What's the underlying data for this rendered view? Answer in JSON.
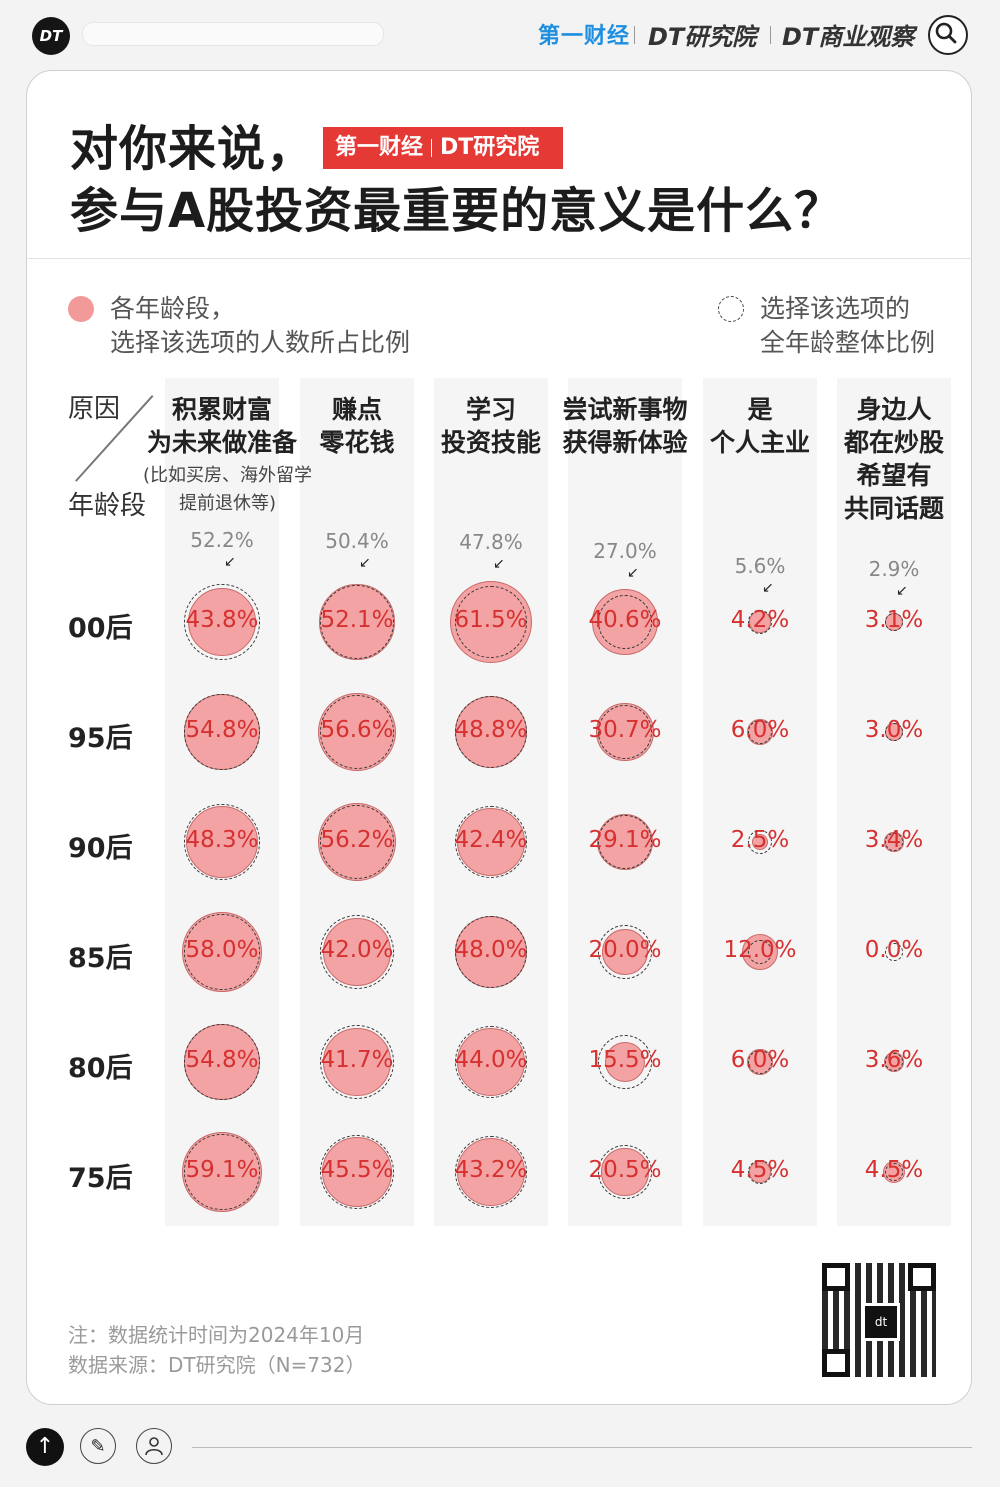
{
  "topbar": {
    "logo": "DT",
    "brand_yicai": "第一财经",
    "brand_dt": "DT研究院",
    "brand_dtbiz": "DT商业观察"
  },
  "title": {
    "line1": "对你来说，",
    "line2": "参与A股投资最重要的意义是什么？",
    "badge_yicai": "第一财经",
    "badge_dt": "DT研究院"
  },
  "legend": {
    "filled_line1": "各年龄段，",
    "filled_line2": "选择该选项的人数所占比例",
    "ring_line1": "选择该选项的",
    "ring_line2": "全年龄整体比例"
  },
  "header": {
    "reason": "原因",
    "age": "年龄段"
  },
  "chart_data": {
    "type": "bubble-matrix",
    "columns": [
      {
        "name_lines": [
          "积累财富",
          "为未来做准备"
        ],
        "note_lines": [
          "(比如买房、海外留学",
          "提前退休等)"
        ],
        "overall": "52.2%"
      },
      {
        "name_lines": [
          "赚点",
          "零花钱"
        ],
        "note_lines": [],
        "overall": "50.4%"
      },
      {
        "name_lines": [
          "学习",
          "投资技能"
        ],
        "note_lines": [],
        "overall": "47.8%"
      },
      {
        "name_lines": [
          "尝试新事物",
          "获得新体验"
        ],
        "note_lines": [],
        "overall": "27.0%"
      },
      {
        "name_lines": [
          "是",
          "个人主业"
        ],
        "note_lines": [],
        "overall": "5.6%"
      },
      {
        "name_lines": [
          "身边人",
          "都在炒股",
          "希望有",
          "共同话题"
        ],
        "note_lines": [],
        "overall": "2.9%"
      }
    ],
    "overall_values": [
      52.2,
      50.4,
      47.8,
      27.0,
      5.6,
      2.9
    ],
    "rows": [
      {
        "age": "00后",
        "values": [
          43.8,
          52.1,
          61.5,
          40.6,
          4.2,
          3.1
        ],
        "labels": [
          "43.8%",
          "52.1%",
          "61.5%",
          "40.6%",
          "4.2%",
          "3.1%"
        ]
      },
      {
        "age": "95后",
        "values": [
          54.8,
          56.6,
          48.8,
          30.7,
          6.0,
          3.0
        ],
        "labels": [
          "54.8%",
          "56.6%",
          "48.8%",
          "30.7%",
          "6.0%",
          "3.0%"
        ]
      },
      {
        "age": "90后",
        "values": [
          48.3,
          56.2,
          42.4,
          29.1,
          2.5,
          3.4
        ],
        "labels": [
          "48.3%",
          "56.2%",
          "42.4%",
          "29.1%",
          "2.5%",
          "3.4%"
        ]
      },
      {
        "age": "85后",
        "values": [
          58.0,
          42.0,
          48.0,
          20.0,
          12.0,
          0.0
        ],
        "labels": [
          "58.0%",
          "42.0%",
          "48.0%",
          "20.0%",
          "12.0%",
          "0.0%"
        ]
      },
      {
        "age": "80后",
        "values": [
          54.8,
          41.7,
          44.0,
          15.5,
          6.0,
          3.6
        ],
        "labels": [
          "54.8%",
          "41.7%",
          "44.0%",
          "15.5%",
          "6.0%",
          "3.6%"
        ]
      },
      {
        "age": "75后",
        "values": [
          59.1,
          45.5,
          43.2,
          20.5,
          4.5,
          4.5
        ],
        "labels": [
          "59.1%",
          "45.5%",
          "43.2%",
          "20.5%",
          "4.5%",
          "4.5%"
        ]
      }
    ],
    "colors": {
      "fill": "#f3a3a3",
      "value_text": "#d63030",
      "column_bg": "#f5f5f5"
    }
  },
  "footnote": {
    "line1": "注：数据统计时间为2024年10月",
    "line2": "数据来源：DT研究院（N=732）"
  },
  "qr": {
    "center_label": "dt"
  }
}
